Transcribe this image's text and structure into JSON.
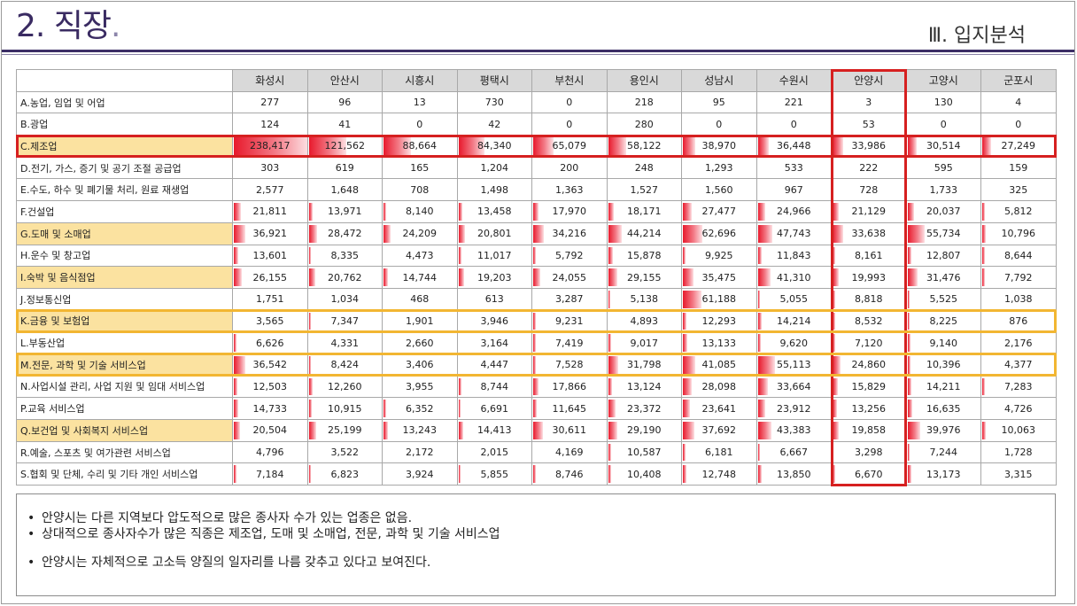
{
  "slide": {
    "title": "2. 직장",
    "title_dot": ".",
    "section": "Ⅲ. 입지분석"
  },
  "table": {
    "cities": [
      "화성시",
      "안산시",
      "시흥시",
      "평택시",
      "부천시",
      "용인시",
      "성남시",
      "수원시",
      "안양시",
      "고양시",
      "군포시"
    ],
    "rows": [
      {
        "label": "A.농업, 임업 및 어업",
        "hl": false,
        "values": [
          "277",
          "96",
          "13",
          "730",
          "0",
          "218",
          "95",
          "221",
          "3",
          "130",
          "4"
        ]
      },
      {
        "label": "B.광업",
        "hl": false,
        "values": [
          "124",
          "41",
          "0",
          "42",
          "0",
          "280",
          "0",
          "0",
          "53",
          "0",
          "0"
        ]
      },
      {
        "label": "C.제조업",
        "hl": true,
        "values": [
          "238,417",
          "121,562",
          "88,664",
          "84,340",
          "65,079",
          "58,122",
          "38,970",
          "36,448",
          "33,986",
          "30,514",
          "27,249"
        ]
      },
      {
        "label": "D.전기, 가스, 증기 및 공기 조절 공급업",
        "hl": false,
        "values": [
          "303",
          "619",
          "165",
          "1,204",
          "200",
          "248",
          "1,293",
          "533",
          "222",
          "595",
          "159"
        ]
      },
      {
        "label": "E.수도, 하수 및 폐기물 처리, 원료 재생업",
        "hl": false,
        "values": [
          "2,577",
          "1,648",
          "708",
          "1,498",
          "1,363",
          "1,527",
          "1,560",
          "967",
          "728",
          "1,733",
          "325"
        ]
      },
      {
        "label": "F.건설업",
        "hl": false,
        "values": [
          "21,811",
          "13,971",
          "8,140",
          "13,458",
          "17,970",
          "18,171",
          "27,477",
          "24,966",
          "21,129",
          "20,037",
          "5,812"
        ]
      },
      {
        "label": "G.도매 및 소매업",
        "hl": true,
        "values": [
          "36,921",
          "28,472",
          "24,209",
          "20,801",
          "34,216",
          "44,214",
          "62,696",
          "47,743",
          "33,638",
          "55,734",
          "10,796"
        ]
      },
      {
        "label": "H.운수 및 창고업",
        "hl": false,
        "values": [
          "13,601",
          "8,335",
          "4,473",
          "11,017",
          "5,792",
          "15,878",
          "9,925",
          "11,843",
          "8,161",
          "12,807",
          "8,644"
        ]
      },
      {
        "label": "I.숙박 및 음식점업",
        "hl": true,
        "values": [
          "26,155",
          "20,762",
          "14,744",
          "19,203",
          "24,055",
          "29,155",
          "35,475",
          "41,310",
          "19,993",
          "31,476",
          "7,792"
        ]
      },
      {
        "label": "J.정보통신업",
        "hl": false,
        "values": [
          "1,751",
          "1,034",
          "468",
          "613",
          "3,287",
          "5,138",
          "61,188",
          "5,055",
          "8,818",
          "5,525",
          "1,038"
        ]
      },
      {
        "label": "K.금융 및 보험업",
        "hl": true,
        "values": [
          "3,565",
          "7,347",
          "1,901",
          "3,946",
          "9,231",
          "4,893",
          "12,293",
          "14,214",
          "8,532",
          "8,225",
          "876"
        ]
      },
      {
        "label": "L.부동산업",
        "hl": false,
        "values": [
          "6,626",
          "4,331",
          "2,660",
          "3,164",
          "7,419",
          "9,017",
          "13,133",
          "9,620",
          "7,120",
          "9,140",
          "2,176"
        ]
      },
      {
        "label": "M.전문, 과학 및 기술 서비스업",
        "hl": true,
        "values": [
          "36,542",
          "8,424",
          "3,406",
          "4,447",
          "7,528",
          "31,798",
          "41,085",
          "55,113",
          "24,860",
          "10,396",
          "4,377"
        ]
      },
      {
        "label": "N.사업시설 관리, 사업 지원 및 임대 서비스업",
        "hl": false,
        "values": [
          "12,503",
          "12,260",
          "3,955",
          "8,744",
          "17,866",
          "13,124",
          "28,098",
          "33,664",
          "15,829",
          "14,211",
          "7,283"
        ]
      },
      {
        "label": "P.교육 서비스업",
        "hl": false,
        "values": [
          "14,733",
          "10,915",
          "6,352",
          "6,691",
          "11,645",
          "23,372",
          "23,641",
          "23,912",
          "13,256",
          "16,635",
          "4,726"
        ]
      },
      {
        "label": "Q.보건업 및 사회복지 서비스업",
        "hl": true,
        "values": [
          "20,504",
          "25,199",
          "13,243",
          "14,413",
          "30,611",
          "29,190",
          "37,692",
          "43,383",
          "19,858",
          "39,976",
          "10,063"
        ]
      },
      {
        "label": "R.예술, 스포츠 및 여가관련 서비스업",
        "hl": false,
        "values": [
          "4,796",
          "3,522",
          "2,172",
          "2,015",
          "4,169",
          "10,587",
          "6,181",
          "6,667",
          "3,298",
          "7,244",
          "1,728"
        ]
      },
      {
        "label": "S.협회 및 단체, 수리 및 기타 개인 서비스업",
        "hl": false,
        "values": [
          "7,184",
          "6,823",
          "3,924",
          "5,855",
          "8,746",
          "10,408",
          "12,748",
          "13,850",
          "6,670",
          "13,173",
          "3,315"
        ]
      }
    ]
  },
  "notes": [
    "안양시는 다른 지역보다 압도적으로 많은 종사자 수가 있는 업종은 없음.",
    "상대적으로 종사자수가 많은 직종은 제조업, 도매 및 소매업, 전문, 과학 및 기술 서비스업",
    "안양시는 자체적으로 고소득 양질의 일자리를 나름 갖추고 있다고 보여진다."
  ],
  "colors": {
    "title": "#3a2b62",
    "bar": "#e8192c",
    "highlight_fill": "#fbe2a0",
    "red_outline": "#d62020",
    "yellow_outline": "#f2b632"
  }
}
